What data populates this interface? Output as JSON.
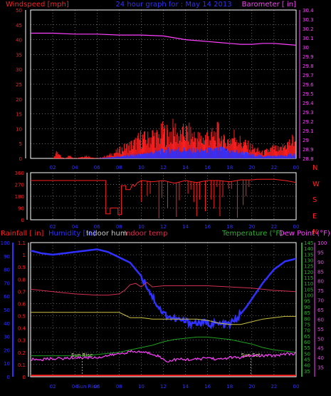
{
  "colors": {
    "background": "#000000",
    "axis_white": "#ffffff",
    "wind": "#ff2020",
    "gust_fill": "#ff2020",
    "wind_avg": "#3030ff",
    "barometer": "#ff40ff",
    "direction": "#ff2020",
    "rain_label": "#ff2020",
    "humidity": "#3030ff",
    "indoor_hum": "#c8c8c8",
    "indoor_temp": "#d03050",
    "temperature": "#90d020",
    "dewpoint": "#ff40ff",
    "rain_axis": "#3030ff",
    "temp_axis": "#30a030",
    "dew_axis": "#ff40ff",
    "indoor_hum_line": "#c8c040",
    "temp_line": "#20a020",
    "rain_line": "#ff2020",
    "grid": "#ffffff",
    "sun": "#ffffa0"
  },
  "header": {
    "left_label": "Windspeed [mph]",
    "center_title": "24 hour graph for : May 14 2013",
    "right_label": "Barometer [ in]"
  },
  "compass": {
    "letters": [
      "N",
      "W",
      "S",
      "E",
      "N"
    ]
  },
  "bottom_header": {
    "rainfall": "Rainfall [ in]",
    "humidity": "Humidity [%]",
    "indoor_hum": "Indoor hum",
    "indoor_temp": "Indoor temp",
    "temperature": "Temperature (°F)",
    "dewpoint": "Dew Point (°F)"
  },
  "annotations": {
    "sun_rise": "Sun Rise",
    "sun_set": "Sun Set",
    "sun_rise_hour": 4.65,
    "sun_set_hour": 19.9,
    "sun_rise_axis_label": "Sun Rise"
  },
  "chart_data": [
    {
      "type": "line",
      "title": "24 hour graph for : May 14 2013",
      "ylabel": "Windspeed [mph]",
      "ylabel_right": "Barometer [ in]",
      "x_ticks": [
        "02",
        "04",
        "06",
        "08",
        "10",
        "12",
        "14",
        "16",
        "18",
        "20",
        "22",
        "00"
      ],
      "ylim": [
        0,
        50
      ],
      "y_ticks": [
        0,
        5,
        10,
        15,
        20,
        25,
        30,
        35,
        40,
        45,
        50
      ],
      "ylim_right": [
        28.8,
        30.4
      ],
      "y_ticks_right": [
        "28.8",
        "28.9",
        "29",
        "29.1",
        "29.2",
        "29.3",
        "29.4",
        "29.5",
        "29.6",
        "29.7",
        "29.8",
        "29.9",
        "30",
        "30.1",
        "30.2",
        "30.3",
        "30.4"
      ],
      "series": [
        {
          "key": "barometer",
          "axis": "right",
          "x": [
            0,
            2,
            4,
            6,
            8,
            10,
            12,
            13,
            14,
            15,
            16,
            17,
            18,
            19,
            20,
            21,
            22,
            23,
            24
          ],
          "y": [
            30.15,
            30.15,
            30.14,
            30.14,
            30.13,
            30.13,
            30.12,
            30.1,
            30.08,
            30.07,
            30.06,
            30.05,
            30.04,
            30.03,
            30.03,
            30.04,
            30.04,
            30.03,
            30.02
          ]
        },
        {
          "key": "wind_gust",
          "axis": "left",
          "x": [
            0,
            2,
            2.3,
            3,
            3.5,
            4,
            5,
            6,
            7,
            7.5,
            8,
            8.5,
            9,
            9.5,
            10,
            10.5,
            11,
            11.5,
            12,
            12.5,
            13,
            13.5,
            14,
            14.5,
            15,
            15.5,
            16,
            16.5,
            17,
            17.5,
            18,
            18.5,
            19,
            19.5,
            20,
            20.5,
            21,
            21.5,
            22,
            22.5,
            23,
            23.5,
            24
          ],
          "y": [
            0,
            0,
            2,
            0,
            1,
            0,
            1,
            0,
            1,
            2,
            3,
            4,
            5,
            6,
            8,
            7,
            9,
            8,
            10,
            9,
            11,
            8,
            10,
            9,
            8,
            7,
            9,
            8,
            10,
            6,
            7,
            9,
            6,
            5,
            4,
            3,
            2,
            3,
            4,
            3,
            5,
            6,
            8
          ]
        },
        {
          "key": "wind_avg",
          "axis": "left",
          "x": [
            0,
            2,
            4,
            6,
            7,
            8,
            9,
            10,
            11,
            12,
            13,
            14,
            15,
            16,
            17,
            18,
            19,
            20,
            21,
            22,
            23,
            24
          ],
          "y": [
            0,
            0,
            0,
            0,
            0.3,
            0.6,
            1,
            1.5,
            2,
            2.5,
            3,
            2.8,
            2.6,
            2.8,
            3,
            2.5,
            2,
            1.2,
            0.8,
            0.8,
            1,
            1.5
          ]
        }
      ]
    },
    {
      "type": "line",
      "title": "",
      "ylabel": "",
      "ylim": [
        0,
        360
      ],
      "y_ticks": [
        0,
        90,
        180,
        270,
        360
      ],
      "x_ticks": [
        "02",
        "04",
        "06",
        "08",
        "10",
        "12",
        "14",
        "16",
        "18",
        "20",
        "22",
        "00"
      ],
      "series": [
        {
          "key": "direction",
          "x": [
            0,
            6.8,
            6.8,
            7.2,
            7.2,
            7.9,
            7.9,
            8.2,
            8.2,
            8.6,
            8.6,
            9.0,
            9.2,
            9.4,
            9.6,
            10,
            11,
            12,
            13,
            14,
            15,
            16,
            17,
            18,
            19,
            20,
            20.5,
            21,
            22,
            23,
            24
          ],
          "y": [
            300,
            300,
            45,
            45,
            90,
            90,
            40,
            40,
            260,
            260,
            230,
            230,
            270,
            255,
            280,
            300,
            290,
            300,
            280,
            300,
            285,
            300,
            300,
            290,
            305,
            305,
            310,
            310,
            310,
            300,
            285
          ]
        }
      ]
    },
    {
      "type": "line",
      "title": "",
      "ylabel": "Rainfall [ in]",
      "ylabel_right": "Temperature (°F)",
      "x_ticks": [
        "02",
        "04",
        "06",
        "08",
        "10",
        "12",
        "14",
        "16",
        "18",
        "20",
        "22",
        "00"
      ],
      "ylim_rain": [
        0,
        1.1
      ],
      "y_ticks_rain": [
        "0",
        "0.1",
        "0.2",
        "0.3",
        "0.4",
        "0.5",
        "0.6",
        "0.7",
        "0.8",
        "0.9",
        "1",
        "1.1"
      ],
      "ylim_humidity": [
        0,
        100
      ],
      "y_ticks_humidity": [
        0,
        10,
        20,
        30,
        40,
        50,
        60,
        70,
        80,
        90,
        100
      ],
      "ylim_temp": [
        30,
        145
      ],
      "y_ticks_temp": [
        35,
        40,
        45,
        50,
        55,
        60,
        65,
        70,
        75,
        80,
        85,
        90,
        95,
        100,
        105,
        110,
        115,
        120,
        125,
        130,
        135,
        140,
        145
      ],
      "ylim_dew": [
        30,
        100
      ],
      "y_ticks_dew": [
        35,
        40,
        45,
        50,
        55,
        60,
        65,
        70,
        75,
        80,
        85,
        90,
        95,
        100
      ],
      "series": [
        {
          "key": "humidity",
          "axis": "humidity",
          "x": [
            0,
            1,
            2,
            3,
            4,
            5,
            6,
            7,
            7.5,
            8,
            8.5,
            9,
            9.5,
            10,
            10.5,
            11,
            11.5,
            12,
            13,
            14,
            15,
            16,
            17,
            18,
            18.5,
            19,
            19.5,
            20,
            21,
            22,
            23,
            24
          ],
          "y": [
            94,
            92,
            91,
            92,
            93,
            94,
            95,
            93,
            91,
            89,
            87,
            85,
            80,
            75,
            68,
            60,
            53,
            47,
            43,
            41,
            40,
            40,
            39,
            39,
            42,
            47,
            52,
            58,
            70,
            80,
            86,
            88
          ]
        },
        {
          "key": "indoor_temp",
          "axis": "temp",
          "x": [
            0,
            2,
            4,
            6,
            7,
            8,
            8.5,
            9,
            9.5,
            10,
            10.5,
            11,
            12,
            14,
            16,
            18,
            20,
            22,
            24
          ],
          "y": [
            105,
            103,
            101,
            100,
            100,
            101,
            104,
            109,
            110,
            107,
            111,
            107,
            108,
            108,
            108,
            107,
            106,
            104,
            103
          ]
        },
        {
          "key": "indoor_hum",
          "axis": "humidity",
          "x": [
            0,
            2,
            4,
            6,
            7,
            8,
            8.5,
            9,
            10,
            11,
            12,
            13,
            14,
            15,
            16,
            17,
            18,
            19,
            20,
            21,
            22,
            23,
            24
          ],
          "y": [
            48,
            48,
            48,
            48,
            48,
            48,
            46,
            44,
            44,
            43,
            43,
            43,
            43,
            43,
            42,
            40,
            39,
            39,
            41,
            43,
            44,
            45,
            45
          ]
        },
        {
          "key": "temperature",
          "axis": "temp",
          "x": [
            0,
            2,
            4,
            5,
            6,
            7,
            8,
            9,
            10,
            11,
            12,
            13,
            14,
            15,
            16,
            17,
            18,
            19,
            20,
            21,
            22,
            23,
            24
          ],
          "y": [
            48,
            48,
            48,
            48,
            49,
            50,
            51,
            53,
            55,
            57,
            60,
            62,
            63,
            64,
            64,
            63,
            62,
            60,
            58,
            55,
            53,
            52,
            51
          ]
        },
        {
          "key": "dewpoint",
          "axis": "dew",
          "x": [
            0,
            1,
            2,
            3,
            4,
            5,
            6,
            7,
            8,
            9,
            10,
            11,
            11.5,
            12,
            12.5,
            13,
            14,
            15,
            16,
            17,
            18,
            19,
            20,
            21,
            22,
            23,
            24
          ],
          "y": [
            39,
            39,
            39.5,
            39.5,
            40,
            40,
            40,
            41,
            42,
            43,
            43,
            42,
            41,
            39,
            38,
            39,
            39,
            39,
            40,
            39,
            40,
            40,
            41,
            41,
            41,
            42,
            42
          ]
        },
        {
          "key": "rain",
          "axis": "rain",
          "x": [
            0,
            24
          ],
          "y": [
            0.01,
            0.01
          ]
        }
      ]
    }
  ]
}
